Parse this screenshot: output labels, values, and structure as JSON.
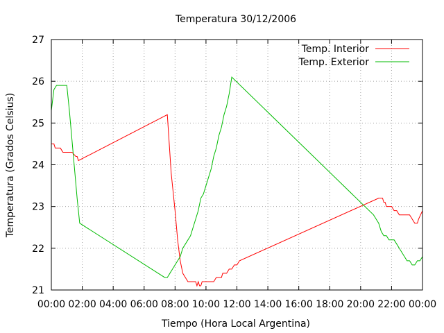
{
  "chart_data": {
    "type": "line",
    "title": "Temperatura 30/12/2006",
    "xlabel": "Tiempo (Hora Local Argentina)",
    "ylabel": "Temperatura (Grados Celsius)",
    "xlim": [
      "00:00",
      "24:00"
    ],
    "ylim": [
      21,
      27
    ],
    "x_ticks": [
      "00:00",
      "02:00",
      "04:00",
      "06:00",
      "08:00",
      "10:00",
      "12:00",
      "14:00",
      "16:00",
      "18:00",
      "20:00",
      "22:00",
      "00:00"
    ],
    "y_ticks": [
      "21",
      "22",
      "23",
      "24",
      "25",
      "26",
      "27"
    ],
    "grid": true,
    "legend_position": "top-right",
    "series": [
      {
        "name": "Temp. Interior",
        "color": "#ff0000",
        "x": [
          "00:00",
          "00:10",
          "00:15",
          "00:20",
          "00:35",
          "00:45",
          "00:55",
          "01:10",
          "01:20",
          "01:35",
          "01:40",
          "01:45",
          "07:30",
          "07:45",
          "08:00",
          "08:10",
          "08:20",
          "08:30",
          "08:40",
          "08:50",
          "09:00",
          "09:10",
          "09:20",
          "09:25",
          "09:30",
          "09:35",
          "09:40",
          "09:45",
          "10:00",
          "10:30",
          "10:40",
          "10:50",
          "11:00",
          "11:05",
          "11:10",
          "11:20",
          "11:30",
          "11:40",
          "11:50",
          "12:00",
          "12:10",
          "21:10",
          "21:25",
          "21:30",
          "21:35",
          "21:40",
          "21:50",
          "22:00",
          "22:10",
          "22:20",
          "22:30",
          "22:40",
          "22:50",
          "23:00",
          "23:10",
          "23:20",
          "23:30",
          "23:35",
          "23:40",
          "23:45",
          "24:00"
        ],
        "values": [
          24.5,
          24.5,
          24.4,
          24.4,
          24.4,
          24.3,
          24.3,
          24.3,
          24.3,
          24.2,
          24.2,
          24.1,
          25.2,
          23.8,
          22.9,
          22.2,
          21.7,
          21.4,
          21.3,
          21.2,
          21.2,
          21.2,
          21.2,
          21.1,
          21.2,
          21.1,
          21.1,
          21.2,
          21.2,
          21.2,
          21.3,
          21.3,
          21.3,
          21.4,
          21.4,
          21.4,
          21.5,
          21.5,
          21.6,
          21.6,
          21.7,
          23.2,
          23.2,
          23.1,
          23.1,
          23.0,
          23.0,
          23.0,
          22.9,
          22.9,
          22.8,
          22.8,
          22.8,
          22.8,
          22.8,
          22.7,
          22.6,
          22.6,
          22.6,
          22.7,
          22.9
        ]
      },
      {
        "name": "Temp. Exterior",
        "color": "#00bb00",
        "x": [
          "00:00",
          "00:10",
          "00:20",
          "00:30",
          "01:00",
          "01:10",
          "01:20",
          "01:30",
          "01:40",
          "01:45",
          "01:50",
          "07:20",
          "07:30",
          "07:40",
          "07:50",
          "08:00",
          "08:10",
          "08:20",
          "08:30",
          "08:40",
          "08:50",
          "09:00",
          "09:10",
          "09:20",
          "09:30",
          "09:40",
          "09:50",
          "10:00",
          "10:10",
          "10:20",
          "10:30",
          "10:40",
          "10:50",
          "11:00",
          "11:10",
          "11:20",
          "11:30",
          "11:40",
          "20:50",
          "21:00",
          "21:10",
          "21:20",
          "21:30",
          "21:40",
          "21:50",
          "22:00",
          "22:10",
          "22:20",
          "22:30",
          "22:40",
          "22:50",
          "23:00",
          "23:10",
          "23:20",
          "23:30",
          "23:40",
          "23:50",
          "24:00"
        ],
        "values": [
          25.3,
          25.8,
          25.9,
          25.9,
          25.9,
          25.3,
          24.6,
          23.9,
          23.2,
          22.9,
          22.6,
          21.3,
          21.3,
          21.4,
          21.5,
          21.6,
          21.7,
          21.8,
          22.0,
          22.1,
          22.2,
          22.3,
          22.5,
          22.7,
          22.9,
          23.2,
          23.3,
          23.5,
          23.7,
          23.9,
          24.2,
          24.4,
          24.7,
          24.9,
          25.2,
          25.4,
          25.7,
          26.1,
          22.8,
          22.7,
          22.6,
          22.4,
          22.3,
          22.3,
          22.2,
          22.2,
          22.2,
          22.1,
          22.0,
          21.9,
          21.8,
          21.7,
          21.7,
          21.6,
          21.6,
          21.7,
          21.7,
          21.8
        ]
      }
    ]
  }
}
